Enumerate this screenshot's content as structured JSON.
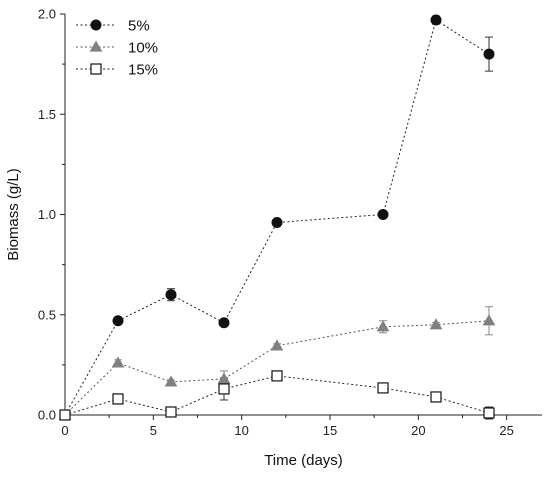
{
  "chart_data": {
    "type": "scatter",
    "title": "",
    "xlabel": "Time (days)",
    "ylabel": "Biomass (g/L)",
    "xlim": [
      0,
      27
    ],
    "ylim": [
      0,
      2.0
    ],
    "xticks": [
      0,
      5,
      10,
      15,
      20,
      25
    ],
    "yticks": [
      0.0,
      0.5,
      1.0,
      1.5,
      2.0
    ],
    "xtick_labels": [
      "0",
      "5",
      "10",
      "15",
      "20",
      "25"
    ],
    "ytick_labels": [
      "0.0",
      "0.5",
      "1.0",
      "1.5",
      "2.0"
    ],
    "grid": false,
    "legend_position": "top-left",
    "series": [
      {
        "name": "5%",
        "marker": "filled-circle",
        "color": "#111111",
        "x": [
          0,
          3,
          6,
          9,
          12,
          18,
          21,
          24
        ],
        "y": [
          0.0,
          0.47,
          0.6,
          0.46,
          0.96,
          1.0,
          1.97,
          1.8
        ],
        "error": [
          0.0,
          0.01,
          0.03,
          0.01,
          0.01,
          0.01,
          0.02,
          0.085
        ]
      },
      {
        "name": "10%",
        "marker": "filled-triangle",
        "color": "#808080",
        "x": [
          0,
          3,
          6,
          9,
          12,
          18,
          21,
          24
        ],
        "y": [
          0.0,
          0.26,
          0.165,
          0.18,
          0.345,
          0.44,
          0.45,
          0.47
        ],
        "error": [
          0.0,
          0.015,
          0.01,
          0.04,
          0.01,
          0.03,
          0.01,
          0.07
        ]
      },
      {
        "name": "15%",
        "marker": "open-square",
        "color": "#111111",
        "x": [
          0,
          3,
          6,
          9,
          12,
          18,
          21,
          24
        ],
        "y": [
          0.0,
          0.08,
          0.015,
          0.13,
          0.195,
          0.135,
          0.09,
          0.01
        ],
        "error": [
          0.0,
          0.02,
          0.01,
          0.055,
          0.02,
          0.02,
          0.01,
          0.03
        ]
      }
    ]
  }
}
